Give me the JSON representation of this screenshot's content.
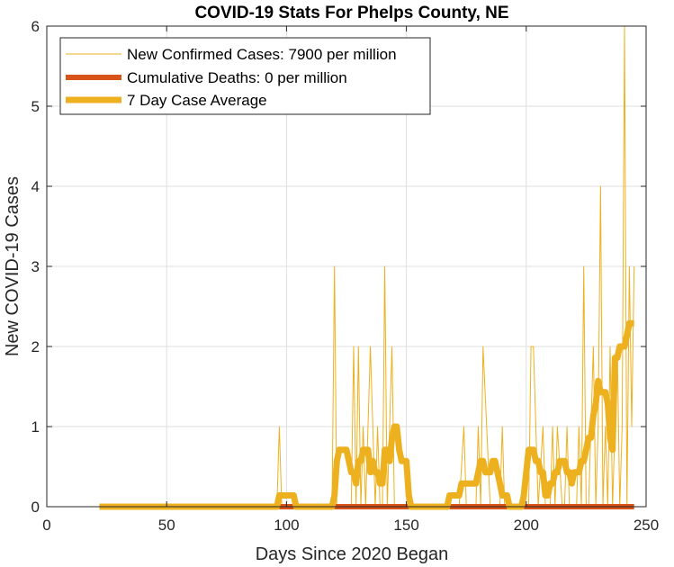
{
  "chart_data": {
    "type": "line",
    "title": "COVID-19 Stats For Phelps County, NE",
    "xlabel": "Days Since 2020 Began",
    "ylabel": "New COVID-19 Cases",
    "xlim": [
      0,
      250
    ],
    "ylim": [
      0,
      6
    ],
    "xticks": [
      0,
      50,
      100,
      150,
      200,
      250
    ],
    "yticks": [
      0,
      1,
      2,
      3,
      4,
      5,
      6
    ],
    "grid": true,
    "legend_position": "top-left",
    "series": [
      {
        "name": "New Confirmed Cases: 7900 per million",
        "color": "#EDB120",
        "style": "thin",
        "x": [
          22,
          96,
          97,
          98,
          119,
          120,
          121,
          127,
          128,
          129,
          130,
          131,
          132,
          133,
          135,
          137,
          138,
          139,
          140,
          141,
          142,
          143,
          144,
          145,
          146,
          150,
          167,
          172,
          174,
          175,
          179,
          180,
          181,
          182,
          185,
          187,
          189,
          190,
          191,
          196,
          201,
          202,
          203,
          205,
          207,
          208,
          210,
          211,
          212,
          213,
          215,
          216,
          217,
          218,
          219,
          220,
          221,
          222,
          223,
          224,
          225,
          226,
          227,
          228,
          229,
          230,
          231,
          232,
          233,
          234,
          235,
          236,
          237,
          238,
          239,
          240,
          241,
          242,
          243,
          244,
          245
        ],
        "y": [
          0,
          0,
          1,
          0,
          0,
          3,
          0,
          0,
          2,
          0,
          2,
          0,
          1,
          0,
          2,
          0,
          1,
          0,
          0,
          3,
          0,
          1,
          2,
          0,
          0,
          0,
          0,
          0,
          1,
          0,
          0,
          1,
          0,
          2,
          0,
          0,
          0,
          1,
          0,
          0,
          0,
          2,
          2,
          0,
          1,
          0,
          0,
          1,
          0,
          1,
          0,
          0,
          1,
          0,
          0,
          0,
          0,
          1,
          0,
          3,
          0,
          0,
          1,
          2,
          0,
          1,
          4,
          0,
          1,
          0,
          2,
          0,
          1,
          2,
          0,
          1,
          6,
          0,
          3,
          1,
          3
        ]
      },
      {
        "name": "Cumulative Deaths: 0 per million",
        "color": "#D95319",
        "style": "thick",
        "x": [
          22,
          245
        ],
        "y": [
          0,
          0
        ]
      },
      {
        "name": "7 Day Case Average",
        "color": "#EDB120",
        "style": "thickest",
        "x": [
          22,
          96,
          97,
          98,
          101,
          103,
          104,
          119,
          120,
          121,
          122,
          125,
          126,
          127,
          128,
          129,
          130,
          131,
          132,
          133,
          134,
          135,
          136,
          137,
          138,
          139,
          140,
          141,
          142,
          143,
          144,
          145,
          146,
          147,
          148,
          149,
          150,
          151,
          152,
          167,
          168,
          172,
          173,
          174,
          175,
          176,
          179,
          180,
          181,
          182,
          183,
          184,
          185,
          186,
          187,
          188,
          189,
          190,
          191,
          192,
          193,
          194,
          196,
          197,
          198,
          199,
          200,
          201,
          202,
          203,
          204,
          205,
          206,
          207,
          208,
          209,
          210,
          211,
          212,
          213,
          214,
          215,
          216,
          217,
          218,
          219,
          220,
          221,
          222,
          223,
          224,
          225,
          226,
          227,
          228,
          229,
          230,
          231,
          232,
          233,
          234,
          235,
          236,
          237,
          238,
          239,
          240,
          241,
          242,
          243,
          244,
          245
        ],
        "y": [
          0,
          0,
          0.14,
          0.14,
          0.14,
          0.14,
          0,
          0,
          0.14,
          0.57,
          0.71,
          0.71,
          0.57,
          0.43,
          0.43,
          0.29,
          0.57,
          0.57,
          0.71,
          0.71,
          0.71,
          0.43,
          0.57,
          0.43,
          0.43,
          0.29,
          0.29,
          0.71,
          0.71,
          0.57,
          0.86,
          1.0,
          1.0,
          0.71,
          0.57,
          0.57,
          0.57,
          0.14,
          0,
          0,
          0.14,
          0.14,
          0.29,
          0.29,
          0.29,
          0.29,
          0.29,
          0.43,
          0.57,
          0.57,
          0.43,
          0.43,
          0.43,
          0.57,
          0.57,
          0.43,
          0.29,
          0.14,
          0.14,
          0.14,
          0,
          0,
          0,
          0,
          0,
          0.14,
          0.43,
          0.71,
          0.71,
          0.71,
          0.57,
          0.57,
          0.43,
          0.43,
          0.14,
          0.14,
          0.29,
          0.29,
          0.43,
          0.43,
          0.57,
          0.57,
          0.57,
          0.43,
          0.43,
          0.29,
          0.43,
          0.43,
          0.43,
          0.57,
          0.57,
          0.71,
          0.86,
          0.86,
          1.14,
          1.29,
          1.57,
          1.43,
          1.43,
          1.43,
          1.29,
          0.86,
          0.71,
          1.86,
          1.86,
          2.0,
          2.0,
          2.0,
          2.14,
          2.29,
          2.29,
          2.29
        ]
      }
    ]
  }
}
